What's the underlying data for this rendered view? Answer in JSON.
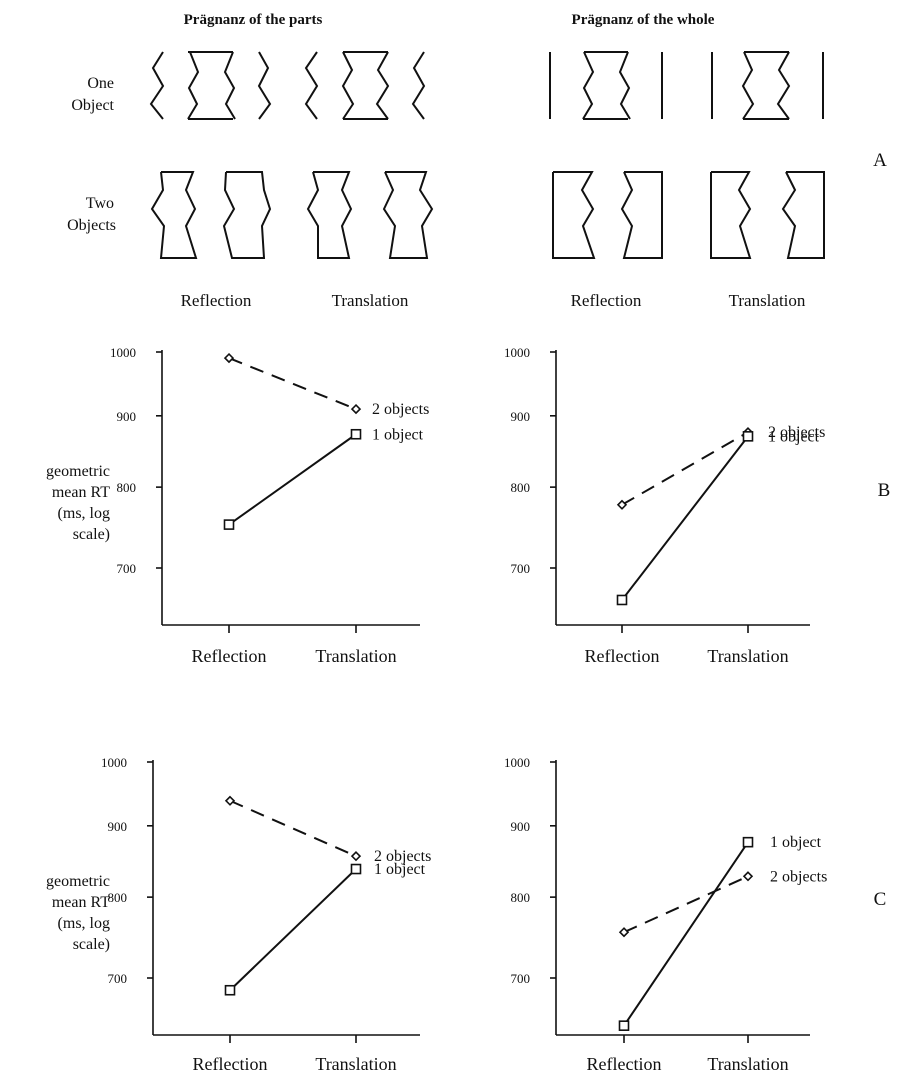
{
  "panel_a": {
    "left_heading": "Prägnanz of the parts",
    "right_heading": "Prägnanz of the whole",
    "row_one_label": [
      "One",
      "Object"
    ],
    "row_two_label": [
      "Two",
      "Objects"
    ],
    "col_left_a": "Reflection",
    "col_left_b": "Translation",
    "col_right_a": "Reflection",
    "col_right_b": "Translation",
    "panel_letter": "A"
  },
  "panel_b_letter": "B",
  "panel_c_letter": "C",
  "ylabel_lines": [
    "geometric",
    "mean RT",
    "(ms, log",
    "scale)"
  ],
  "chart_data": [
    {
      "type": "line",
      "id": "B-left",
      "log_scale_y": true,
      "categories": [
        "Reflection",
        "Translation"
      ],
      "yticks": [
        700,
        800,
        900,
        1000
      ],
      "ylim": [
        640,
        1000
      ],
      "series": [
        {
          "name": "2 objects",
          "values": [
            990,
            910
          ],
          "marker": "diamond",
          "dash": true
        },
        {
          "name": "1 object",
          "values": [
            752,
            873
          ],
          "marker": "square",
          "dash": false
        }
      ]
    },
    {
      "type": "line",
      "id": "B-right",
      "log_scale_y": true,
      "categories": [
        "Reflection",
        "Translation"
      ],
      "yticks": [
        700,
        800,
        900,
        1000
      ],
      "ylim": [
        640,
        1000
      ],
      "series": [
        {
          "name": "2 objects",
          "values": [
            777,
            876
          ],
          "marker": "diamond",
          "dash": true
        },
        {
          "name": "1 object",
          "values": [
            664,
            870
          ],
          "marker": "square",
          "dash": false
        }
      ]
    },
    {
      "type": "line",
      "id": "C-left",
      "log_scale_y": true,
      "categories": [
        "Reflection",
        "Translation"
      ],
      "yticks": [
        700,
        800,
        900,
        1000
      ],
      "ylim": [
        640,
        1000
      ],
      "series": [
        {
          "name": "2 objects",
          "values": [
            938,
            856
          ],
          "marker": "diamond",
          "dash": true
        },
        {
          "name": "1 object",
          "values": [
            686,
            838
          ],
          "marker": "square",
          "dash": false
        }
      ]
    },
    {
      "type": "line",
      "id": "C-right",
      "log_scale_y": true,
      "categories": [
        "Reflection",
        "Translation"
      ],
      "yticks": [
        700,
        800,
        900,
        1000
      ],
      "ylim": [
        640,
        1000
      ],
      "series": [
        {
          "name": "2 objects",
          "values": [
            755,
            828
          ],
          "marker": "diamond",
          "dash": true
        },
        {
          "name": "1 object",
          "values": [
            647,
            876
          ],
          "marker": "square",
          "dash": false
        }
      ]
    }
  ]
}
